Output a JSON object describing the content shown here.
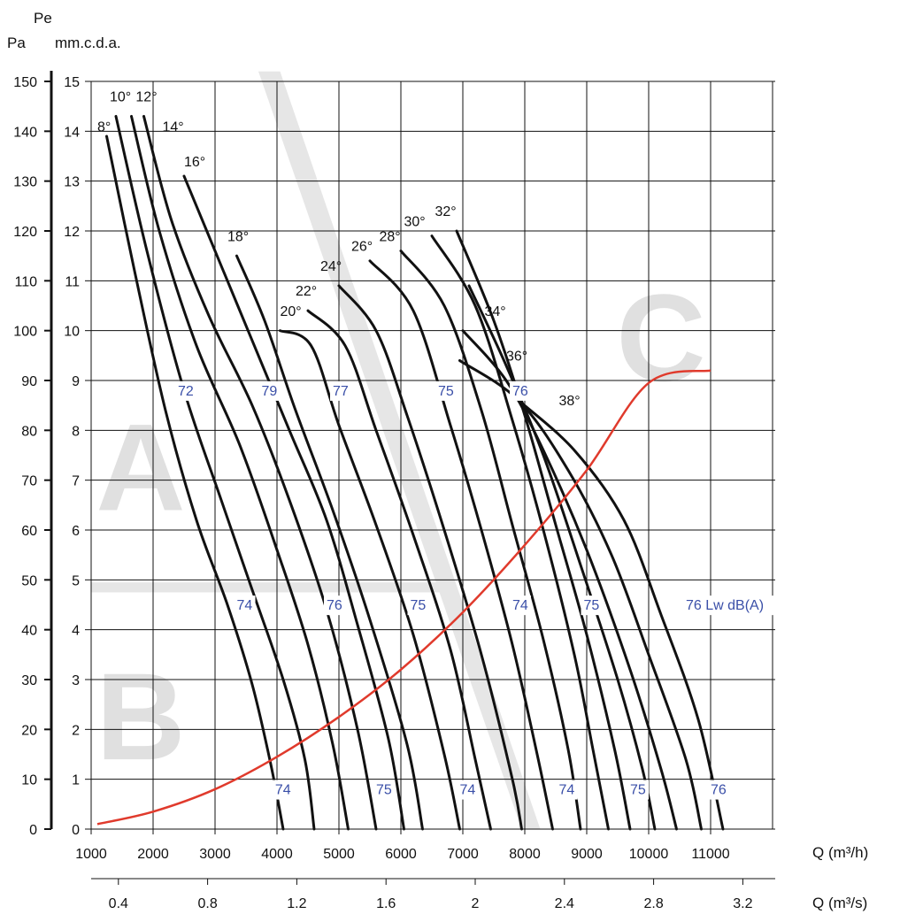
{
  "chart_data": {
    "type": "line",
    "title": "",
    "y_axis": {
      "unit_top_label": "Pe",
      "pa_label": "Pa",
      "mm_label": "mm.c.d.a.",
      "pa_ticks": [
        0,
        10,
        20,
        30,
        40,
        50,
        60,
        70,
        80,
        90,
        100,
        110,
        120,
        130,
        140,
        150
      ],
      "mm_ticks": [
        0,
        1,
        2,
        3,
        4,
        5,
        6,
        7,
        8,
        9,
        10,
        11,
        12,
        13,
        14,
        15
      ],
      "range_mm": [
        0,
        15
      ]
    },
    "x_axis": {
      "label_m3h": "Q (m³/h)",
      "label_m3s": "Q (m³/s)",
      "ticks_m3h": [
        1000,
        2000,
        3000,
        4000,
        5000,
        6000,
        7000,
        8000,
        9000,
        10000,
        11000
      ],
      "ticks_m3s": [
        0.4,
        0.8,
        1.2,
        1.6,
        2,
        2.4,
        2.8,
        3.2
      ],
      "range_m3h": [
        1000,
        12000
      ]
    },
    "grid": true,
    "zones": [
      "A",
      "B",
      "C"
    ],
    "blade_angle_curves": [
      {
        "name": "8°",
        "points": [
          [
            1250,
            13.9
          ],
          [
            1700,
            11.2
          ],
          [
            2200,
            8.4
          ],
          [
            2700,
            6.2
          ],
          [
            3200,
            4.5
          ],
          [
            3600,
            2.9
          ],
          [
            3900,
            1.3
          ],
          [
            4100,
            0
          ]
        ]
      },
      {
        "name": "10°",
        "points": [
          [
            1400,
            14.3
          ],
          [
            1900,
            11.6
          ],
          [
            2500,
            8.8
          ],
          [
            3100,
            6.6
          ],
          [
            3600,
            4.8
          ],
          [
            4100,
            3.0
          ],
          [
            4450,
            1.4
          ],
          [
            4600,
            0
          ]
        ]
      },
      {
        "name": "12°",
        "points": [
          [
            1650,
            14.3
          ],
          [
            2100,
            12.0
          ],
          [
            2700,
            9.7
          ],
          [
            3400,
            7.7
          ],
          [
            4000,
            5.6
          ],
          [
            4500,
            3.7
          ],
          [
            4900,
            1.7
          ],
          [
            5150,
            0
          ]
        ]
      },
      {
        "name": "14°",
        "points": [
          [
            1850,
            14.3
          ],
          [
            2300,
            12.2
          ],
          [
            2900,
            10.3
          ],
          [
            3600,
            8.5
          ],
          [
            4200,
            6.6
          ],
          [
            4800,
            4.4
          ],
          [
            5300,
            2.0
          ],
          [
            5600,
            0
          ]
        ]
      },
      {
        "name": "16°",
        "points": [
          [
            2500,
            13.1
          ],
          [
            3000,
            11.6
          ],
          [
            3600,
            9.8
          ],
          [
            4200,
            8.0
          ],
          [
            4800,
            6.2
          ],
          [
            5300,
            4.1
          ],
          [
            5800,
            1.8
          ],
          [
            6050,
            0
          ]
        ]
      },
      {
        "name": "18°",
        "points": [
          [
            3350,
            11.5
          ],
          [
            3800,
            10.2
          ],
          [
            4300,
            8.4
          ],
          [
            4900,
            6.4
          ],
          [
            5500,
            4.2
          ],
          [
            6100,
            1.7
          ],
          [
            6350,
            0
          ]
        ]
      },
      {
        "name": "20°",
        "points": [
          [
            4050,
            10.0
          ],
          [
            4550,
            9.7
          ],
          [
            5000,
            8.1
          ],
          [
            5600,
            6.1
          ],
          [
            6200,
            3.9
          ],
          [
            6700,
            1.5
          ],
          [
            6950,
            0
          ]
        ]
      },
      {
        "name": "22°",
        "points": [
          [
            4500,
            10.4
          ],
          [
            5100,
            9.7
          ],
          [
            5600,
            8.0
          ],
          [
            6200,
            5.9
          ],
          [
            6800,
            3.6
          ],
          [
            7200,
            1.4
          ],
          [
            7450,
            0
          ]
        ]
      },
      {
        "name": "24°",
        "points": [
          [
            5000,
            10.9
          ],
          [
            5600,
            10.0
          ],
          [
            6100,
            8.3
          ],
          [
            6700,
            6.0
          ],
          [
            7300,
            3.5
          ],
          [
            7800,
            1.0
          ],
          [
            7950,
            0
          ]
        ]
      },
      {
        "name": "26°",
        "points": [
          [
            5500,
            11.4
          ],
          [
            6200,
            10.4
          ],
          [
            6800,
            8.1
          ],
          [
            7300,
            6.0
          ],
          [
            7800,
            3.7
          ],
          [
            8200,
            1.5
          ],
          [
            8450,
            0
          ]
        ]
      },
      {
        "name": "28°",
        "points": [
          [
            6000,
            11.6
          ],
          [
            6700,
            10.5
          ],
          [
            7300,
            8.4
          ],
          [
            7800,
            6.1
          ],
          [
            8300,
            3.8
          ],
          [
            8700,
            1.6
          ],
          [
            8900,
            0
          ]
        ]
      },
      {
        "name": "30°",
        "points": [
          [
            6500,
            11.9
          ],
          [
            7200,
            10.5
          ],
          [
            7800,
            8.2
          ],
          [
            8300,
            6.0
          ],
          [
            8800,
            3.5
          ],
          [
            9100,
            1.6
          ],
          [
            9350,
            0
          ]
        ]
      },
      {
        "name": "32°",
        "points": [
          [
            6900,
            12.0
          ],
          [
            7500,
            10.2
          ],
          [
            8000,
            8.3
          ],
          [
            8500,
            6.1
          ],
          [
            9000,
            3.9
          ],
          [
            9450,
            1.6
          ],
          [
            9700,
            0
          ]
        ]
      },
      {
        "name": "34°",
        "points": [
          [
            7100,
            10.9
          ],
          [
            7700,
            9.3
          ],
          [
            8300,
            7.5
          ],
          [
            8900,
            5.3
          ],
          [
            9500,
            3.0
          ],
          [
            9900,
            1.2
          ],
          [
            10100,
            0
          ]
        ]
      },
      {
        "name": "36°",
        "points": [
          [
            7000,
            10.0
          ],
          [
            7700,
            9.0
          ],
          [
            8300,
            7.6
          ],
          [
            9000,
            5.6
          ],
          [
            9700,
            3.2
          ],
          [
            10200,
            1.2
          ],
          [
            10450,
            0
          ]
        ]
      },
      {
        "name": "38°",
        "points": [
          [
            6950,
            9.4
          ],
          [
            7900,
            8.6
          ],
          [
            8700,
            7.2
          ],
          [
            9400,
            5.5
          ],
          [
            10000,
            3.5
          ],
          [
            10600,
            1.4
          ],
          [
            10850,
            0
          ]
        ]
      },
      {
        "name": "",
        "points": [
          [
            7900,
            8.6
          ],
          [
            8800,
            7.6
          ],
          [
            9600,
            6.2
          ],
          [
            10200,
            4.3
          ],
          [
            10800,
            2.2
          ],
          [
            11200,
            0
          ]
        ]
      }
    ],
    "system_curve": {
      "color": "#e03a2c",
      "points": [
        [
          1100,
          0.1
        ],
        [
          2000,
          0.35
        ],
        [
          3000,
          0.8
        ],
        [
          4000,
          1.45
        ],
        [
          5000,
          2.25
        ],
        [
          6000,
          3.2
        ],
        [
          7000,
          4.35
        ],
        [
          8000,
          5.7
        ],
        [
          9000,
          7.2
        ],
        [
          10000,
          8.95
        ],
        [
          11000,
          9.2
        ]
      ]
    },
    "noise_labels": [
      {
        "text": "72",
        "x": 2400,
        "y": 8.7
      },
      {
        "text": "79",
        "x": 3750,
        "y": 8.7
      },
      {
        "text": "77",
        "x": 4900,
        "y": 8.7
      },
      {
        "text": "75",
        "x": 6600,
        "y": 8.7
      },
      {
        "text": "76",
        "x": 7800,
        "y": 8.7
      },
      {
        "text": "74",
        "x": 3350,
        "y": 4.4
      },
      {
        "text": "76",
        "x": 4800,
        "y": 4.4
      },
      {
        "text": "75",
        "x": 6150,
        "y": 4.4
      },
      {
        "text": "74",
        "x": 7800,
        "y": 4.4
      },
      {
        "text": "75",
        "x": 8950,
        "y": 4.4
      },
      {
        "text": "76 Lw dB(A)",
        "x": 10600,
        "y": 4.4
      },
      {
        "text": "74",
        "x": 3970,
        "y": 0.7
      },
      {
        "text": "75",
        "x": 5600,
        "y": 0.7
      },
      {
        "text": "74",
        "x": 6950,
        "y": 0.7
      },
      {
        "text": "74",
        "x": 8550,
        "y": 0.7
      },
      {
        "text": "75",
        "x": 9700,
        "y": 0.7
      },
      {
        "text": "76",
        "x": 11000,
        "y": 0.7
      }
    ],
    "angle_labels": [
      {
        "text": "8°",
        "x": 1100,
        "y": 14.0
      },
      {
        "text": "10°",
        "x": 1300,
        "y": 14.6
      },
      {
        "text": "12°",
        "x": 1720,
        "y": 14.6
      },
      {
        "text": "14°",
        "x": 2150,
        "y": 14.0
      },
      {
        "text": "16°",
        "x": 2500,
        "y": 13.3
      },
      {
        "text": "18°",
        "x": 3200,
        "y": 11.8
      },
      {
        "text": "20°",
        "x": 4050,
        "y": 10.3
      },
      {
        "text": "22°",
        "x": 4300,
        "y": 10.7
      },
      {
        "text": "24°",
        "x": 4700,
        "y": 11.2
      },
      {
        "text": "26°",
        "x": 5200,
        "y": 11.6
      },
      {
        "text": "28°",
        "x": 5650,
        "y": 11.8
      },
      {
        "text": "30°",
        "x": 6050,
        "y": 12.1
      },
      {
        "text": "32°",
        "x": 6550,
        "y": 12.3
      },
      {
        "text": "34°",
        "x": 7350,
        "y": 10.3
      },
      {
        "text": "36°",
        "x": 7700,
        "y": 9.4
      },
      {
        "text": "38°",
        "x": 8550,
        "y": 8.5
      }
    ]
  }
}
